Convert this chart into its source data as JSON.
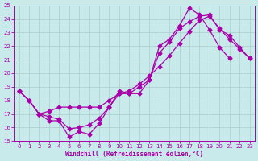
{
  "bg_color": "#c8eaea",
  "grid_color": "#aacccc",
  "line_color": "#aa00aa",
  "xlabel": "Windchill (Refroidissement éolien,°C)",
  "xlim": [
    -0.5,
    23.5
  ],
  "ylim": [
    15,
    25
  ],
  "xticks": [
    0,
    1,
    2,
    3,
    4,
    5,
    6,
    7,
    8,
    9,
    10,
    11,
    12,
    13,
    14,
    15,
    16,
    17,
    18,
    19,
    20,
    21,
    22,
    23
  ],
  "yticks": [
    15,
    16,
    17,
    18,
    19,
    20,
    21,
    22,
    23,
    24,
    25
  ],
  "lineA_x": [
    0,
    1,
    2,
    3,
    4,
    5,
    6,
    7,
    8,
    9,
    10,
    11,
    12,
    13,
    14,
    15,
    16,
    17,
    18,
    19,
    20,
    21,
    22,
    23
  ],
  "lineA_y": [
    18.7,
    18.0,
    17.0,
    16.5,
    16.5,
    15.3,
    15.7,
    15.5,
    16.3,
    17.5,
    18.7,
    18.5,
    18.5,
    19.5,
    22.0,
    22.5,
    23.5,
    24.8,
    24.3,
    23.2,
    21.9,
    21.1,
    null,
    null
  ],
  "lineB_x": [
    0,
    1,
    2,
    3,
    4,
    5,
    6,
    7,
    8,
    9,
    10,
    11,
    12,
    13,
    14,
    15,
    16,
    17,
    18,
    19,
    20,
    21,
    22,
    23
  ],
  "lineB_y": [
    18.7,
    18.0,
    17.0,
    16.8,
    16.6,
    15.9,
    16.0,
    16.2,
    16.7,
    17.5,
    18.5,
    18.5,
    19.0,
    19.5,
    21.5,
    22.3,
    23.3,
    23.8,
    24.2,
    24.3,
    23.2,
    22.8,
    21.9,
    21.1
  ],
  "lineC_x": [
    0,
    1,
    2,
    3,
    4,
    5,
    6,
    7,
    8,
    9,
    10,
    11,
    12,
    13,
    14,
    15,
    16,
    17,
    18,
    19,
    20,
    21,
    22,
    23
  ],
  "lineC_y": [
    18.7,
    18.0,
    17.0,
    17.2,
    17.5,
    17.5,
    17.5,
    17.5,
    17.5,
    18.0,
    18.5,
    18.7,
    19.2,
    19.8,
    20.5,
    21.3,
    22.2,
    23.1,
    23.9,
    24.2,
    23.3,
    22.5,
    21.8,
    21.1
  ]
}
